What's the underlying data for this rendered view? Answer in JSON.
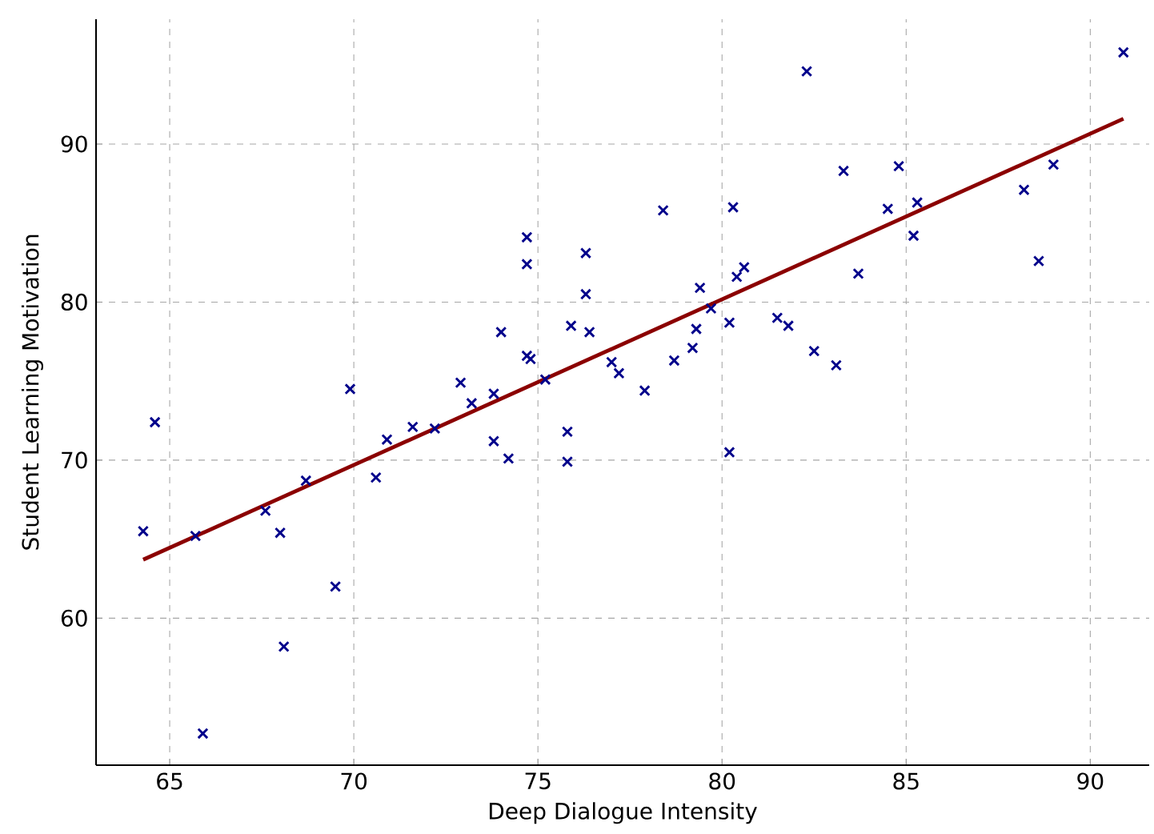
{
  "chart_data": {
    "type": "scatter",
    "xlabel": "Deep Dialogue Intensity",
    "ylabel": "Student Learning Motivation",
    "xlim": [
      63,
      91.6
    ],
    "ylim": [
      50.7,
      97.9
    ],
    "xticks": [
      65,
      70,
      75,
      80,
      85,
      90
    ],
    "yticks": [
      60,
      70,
      80,
      90
    ],
    "grid": true,
    "series": [
      {
        "color": "#00008b",
        "marker": "cross",
        "x": [
          64.28,
          64.6,
          65.7,
          65.9,
          67.6,
          68.0,
          68.7,
          68.1,
          69.5,
          69.9,
          70.6,
          70.9,
          71.6,
          72.2,
          72.9,
          73.2,
          73.8,
          73.8,
          74.2,
          74.0,
          74.7,
          74.7,
          74.7,
          74.8,
          75.2,
          75.8,
          75.8,
          75.9,
          76.3,
          76.3,
          76.4,
          77.0,
          77.2,
          77.9,
          78.4,
          78.7,
          79.2,
          79.3,
          79.4,
          79.7,
          80.2,
          80.2,
          80.3,
          80.4,
          80.6,
          81.5,
          81.8,
          82.3,
          82.5,
          83.1,
          83.3,
          83.7,
          84.5,
          84.8,
          85.2,
          85.3,
          88.2,
          88.6,
          89.0,
          90.9
        ],
        "values": [
          65.5,
          72.4,
          65.2,
          52.7,
          66.8,
          65.4,
          68.7,
          58.2,
          62.0,
          74.5,
          68.9,
          71.3,
          72.1,
          72.0,
          74.9,
          73.6,
          74.2,
          71.2,
          70.1,
          78.1,
          84.1,
          82.4,
          76.6,
          76.4,
          75.1,
          71.8,
          69.9,
          78.5,
          83.1,
          80.5,
          78.1,
          76.2,
          75.5,
          74.4,
          85.8,
          76.3,
          77.1,
          78.3,
          80.9,
          79.6,
          78.7,
          70.5,
          86.0,
          81.6,
          82.2,
          79.0,
          78.5,
          94.6,
          76.9,
          76.0,
          88.3,
          81.8,
          85.9,
          88.6,
          84.2,
          86.3,
          87.1,
          82.6,
          88.7,
          95.8
        ]
      },
      {
        "type": "line",
        "color": "#8b0000",
        "marker": "none",
        "line_style": "solid",
        "x": [
          64.28,
          90.9
        ],
        "values": [
          63.7,
          91.6
        ]
      }
    ]
  }
}
